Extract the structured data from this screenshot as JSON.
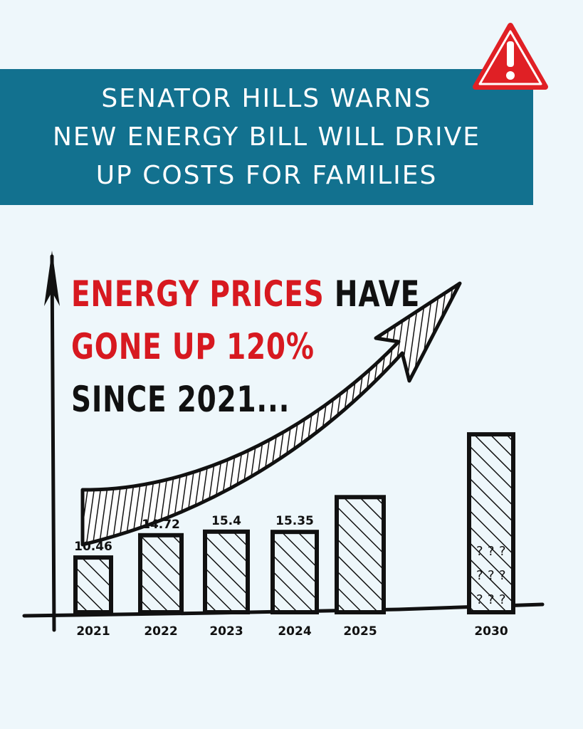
{
  "banner": {
    "lines": [
      "SENATOR HILLS WARNS",
      "NEW ENERGY BILL WILL DRIVE",
      "UP COSTS FOR FAMILIES"
    ],
    "color": "#12718f"
  },
  "warning_icon": {
    "name": "warning-triangle-icon",
    "color": "#e02025"
  },
  "headline": {
    "line1_red": "ENERGY PRICES",
    "line1_black": " HAVE",
    "line2_red": "GONE UP 120%",
    "line3_black": "SINCE 2021..."
  },
  "chart_data": {
    "type": "bar",
    "categories": [
      "2021",
      "2022",
      "2023",
      "2024",
      "2025",
      "2030"
    ],
    "values": [
      10.46,
      14.72,
      15.4,
      15.35,
      22,
      34
    ],
    "value_labels": [
      "10.46",
      "14.72",
      "15.4",
      "15.35",
      "",
      ""
    ],
    "title": "",
    "xlabel": "",
    "ylabel": "",
    "ylim": [
      0,
      36
    ],
    "grid": false,
    "legend": "none",
    "annotation": "upward trend arrow",
    "bar_fill": "hatched",
    "uncertain_category": "2030"
  }
}
